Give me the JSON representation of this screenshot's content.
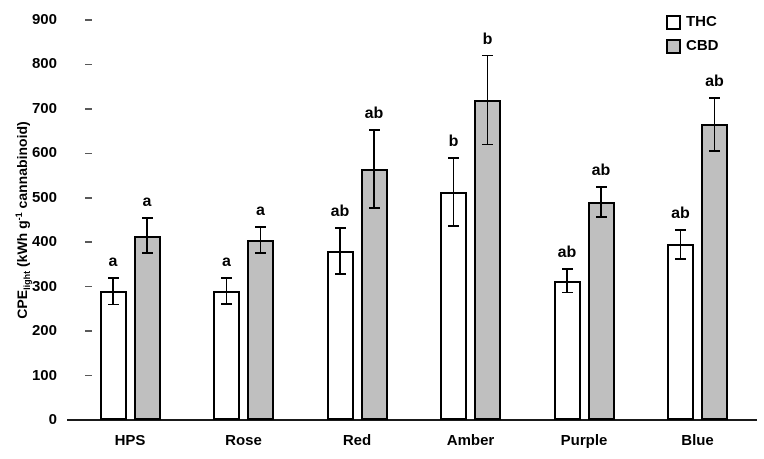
{
  "chart_data": {
    "type": "bar",
    "title": "",
    "categories": [
      "HPS",
      "Rose",
      "Red",
      "Amber",
      "Purple",
      "Blue"
    ],
    "series": [
      {
        "name": "THC",
        "fill": "#FFFFFF",
        "values": [
          290,
          290,
          380,
          513,
          313,
          395
        ],
        "errors": [
          30,
          29,
          52,
          76,
          26,
          32
        ],
        "letters": [
          "a",
          "a",
          "ab",
          "b",
          "ab",
          "ab"
        ]
      },
      {
        "name": "CBD",
        "fill": "#BFBFBF",
        "values": [
          415,
          405,
          565,
          720,
          490,
          665
        ],
        "errors": [
          40,
          30,
          88,
          100,
          34,
          60
        ],
        "letters": [
          "a",
          "a",
          "ab",
          "b",
          "ab",
          "ab"
        ]
      }
    ],
    "ylabel_parts": {
      "prefix": "CPE",
      "sub": "light",
      "mid": " (kWh g",
      "sup": "-1",
      "suffix": " cannabinoid)"
    },
    "y_axis": {
      "min": 0,
      "max": 900,
      "step": 100,
      "tick_labels": [
        "0",
        "100",
        "200",
        "300",
        "400",
        "500",
        "600",
        "700",
        "800",
        "900"
      ]
    },
    "x_axis": {
      "label": ""
    },
    "legend": {
      "position": "top-right",
      "items": [
        "THC",
        "CBD"
      ]
    },
    "grid": false,
    "colors": {
      "bar_border": "#000000",
      "axis_line": "#1a1a1a",
      "tick_mark": "#595959",
      "error_bar": "#000000",
      "cbd_fill": "#BFBFBF",
      "thc_fill": "#FFFFFF"
    }
  }
}
